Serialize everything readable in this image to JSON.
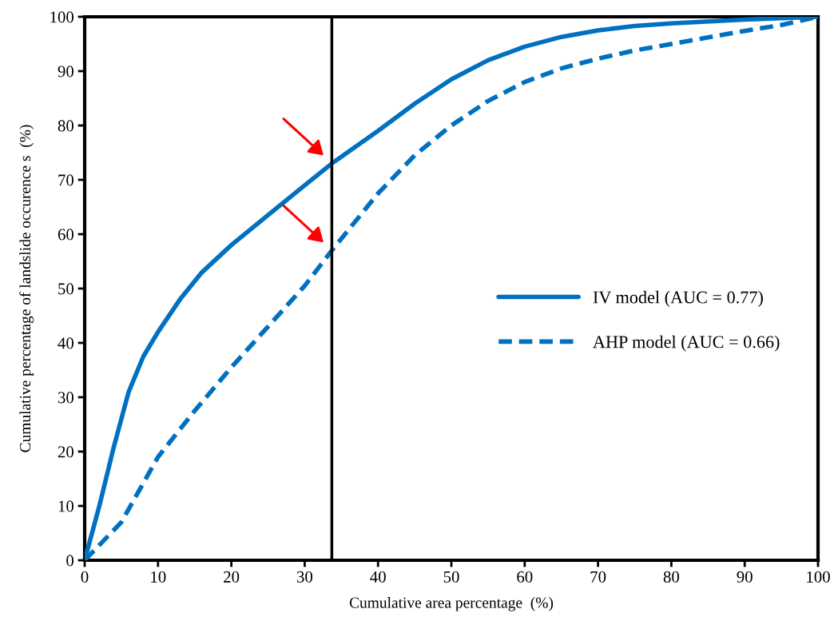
{
  "chart_data": {
    "type": "line",
    "xlabel": "Cumulative area percentage  (%)",
    "ylabel": "Cumulative percentage of landslide occurence s  (%)",
    "xlim": [
      0,
      100
    ],
    "ylim": [
      0,
      100
    ],
    "xticks": [
      0,
      10,
      20,
      30,
      40,
      50,
      60,
      70,
      80,
      90,
      100
    ],
    "yticks": [
      0,
      10,
      20,
      30,
      40,
      50,
      60,
      70,
      80,
      90,
      100
    ],
    "grid": false,
    "legend": "center right",
    "marker": "none",
    "series": [
      {
        "name": "IV model (AUC = 0.77)",
        "color": "#0070c0",
        "line_style": "solid",
        "x": [
          0,
          2,
          4,
          6,
          8,
          10,
          13,
          16,
          20,
          25,
          30,
          33.7,
          40,
          45,
          50,
          55,
          60,
          65,
          70,
          75,
          80,
          90,
          100
        ],
        "values": [
          0,
          10,
          21,
          31,
          37.5,
          42,
          48,
          53,
          58,
          63.5,
          69,
          73,
          79,
          84,
          88.5,
          92,
          94.5,
          96.3,
          97.5,
          98.3,
          98.8,
          99.5,
          100
        ]
      },
      {
        "name": "AHP model (AUC = 0.66)",
        "color": "#0070c0",
        "line_style": "dashed",
        "x": [
          0,
          5,
          10,
          15,
          20,
          25,
          30,
          33.7,
          37,
          40,
          45,
          50,
          55,
          60,
          65,
          70,
          75,
          80,
          85,
          90,
          95,
          100
        ],
        "values": [
          0,
          7,
          19,
          27.5,
          35.5,
          43,
          50.5,
          57,
          62.5,
          67.5,
          74.5,
          80,
          84.5,
          88,
          90.5,
          92.3,
          93.8,
          95,
          96.2,
          97.4,
          98.5,
          100
        ]
      }
    ],
    "ref_lines": [
      {
        "axis": "x",
        "value": 33.7,
        "label": null,
        "color": "#000000",
        "line_style": "solid"
      }
    ]
  }
}
